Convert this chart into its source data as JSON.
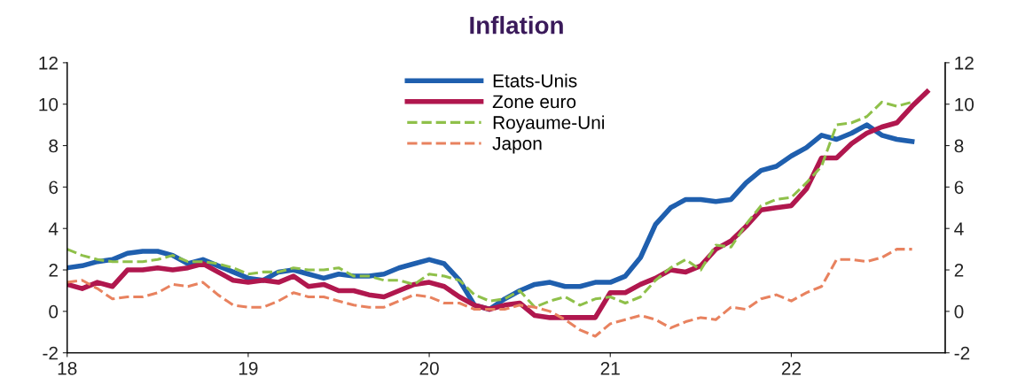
{
  "chart_data": {
    "type": "line",
    "title": "Inflation",
    "xlim": [
      18,
      22.85
    ],
    "xticks": [
      18,
      19,
      20,
      21,
      22
    ],
    "ylim": [
      -2,
      12
    ],
    "yticks": [
      -2,
      0,
      2,
      4,
      6,
      8,
      10,
      12
    ],
    "y2lim": [
      -2,
      12
    ],
    "y2ticks": [
      -2,
      0,
      2,
      4,
      6,
      8,
      10,
      12
    ],
    "grid": false,
    "legend": "top",
    "marker": "none",
    "series": [
      {
        "name": "Etats-Unis",
        "color": "#1f5fae",
        "line_style": "solid",
        "x": [
          18.0,
          18.083,
          18.167,
          18.25,
          18.333,
          18.417,
          18.5,
          18.583,
          18.667,
          18.75,
          18.833,
          18.917,
          19.0,
          19.083,
          19.167,
          19.25,
          19.333,
          19.417,
          19.5,
          19.583,
          19.667,
          19.75,
          19.833,
          19.917,
          20.0,
          20.083,
          20.167,
          20.25,
          20.333,
          20.417,
          20.5,
          20.583,
          20.667,
          20.75,
          20.833,
          20.917,
          21.0,
          21.083,
          21.167,
          21.25,
          21.333,
          21.417,
          21.5,
          21.583,
          21.667,
          21.75,
          21.833,
          21.917,
          22.0,
          22.083,
          22.167,
          22.25,
          22.333,
          22.417,
          22.5,
          22.583,
          22.667
        ],
        "values": [
          2.1,
          2.2,
          2.4,
          2.5,
          2.8,
          2.9,
          2.9,
          2.7,
          2.3,
          2.5,
          2.2,
          1.9,
          1.6,
          1.5,
          1.9,
          2.0,
          1.8,
          1.6,
          1.8,
          1.7,
          1.7,
          1.8,
          2.1,
          2.3,
          2.5,
          2.3,
          1.5,
          0.3,
          0.1,
          0.6,
          1.0,
          1.3,
          1.4,
          1.2,
          1.2,
          1.4,
          1.4,
          1.7,
          2.6,
          4.2,
          5.0,
          5.4,
          5.4,
          5.3,
          5.4,
          6.2,
          6.8,
          7.0,
          7.5,
          7.9,
          8.5,
          8.3,
          8.6,
          9.0,
          8.5,
          8.3,
          8.2
        ]
      },
      {
        "name": "Zone euro",
        "color": "#b0174e",
        "line_style": "solid",
        "values": [
          1.3,
          1.1,
          1.4,
          1.2,
          2.0,
          2.0,
          2.1,
          2.0,
          2.1,
          2.3,
          1.9,
          1.5,
          1.4,
          1.5,
          1.4,
          1.7,
          1.2,
          1.3,
          1.0,
          1.0,
          0.8,
          0.7,
          1.0,
          1.3,
          1.4,
          1.2,
          0.7,
          0.3,
          0.1,
          0.3,
          0.4,
          -0.2,
          -0.3,
          -0.3,
          -0.3,
          -0.3,
          0.9,
          0.9,
          1.3,
          1.6,
          2.0,
          1.9,
          2.2,
          3.0,
          3.4,
          4.1,
          4.9,
          5.0,
          5.1,
          5.9,
          7.4,
          7.4,
          8.1,
          8.6,
          8.9,
          9.1,
          9.9,
          10.6
        ]
      },
      {
        "name": "Royaume-Uni",
        "color": "#8fc04a",
        "line_style": "dashed",
        "x": [
          18.0,
          18.083,
          18.167,
          18.25,
          18.333,
          18.417,
          18.5,
          18.583,
          18.667,
          18.75,
          18.833,
          18.917,
          19.0,
          19.083,
          19.167,
          19.25,
          19.333,
          19.417,
          19.5,
          19.583,
          19.667,
          19.75,
          19.833,
          19.917,
          20.0,
          20.083,
          20.167,
          20.25,
          20.333,
          20.417,
          20.5,
          20.583,
          20.667,
          20.75,
          20.833,
          20.917,
          21.0,
          21.083,
          21.167,
          21.25,
          21.333,
          21.417,
          21.5,
          21.583,
          21.667,
          21.75,
          21.833,
          21.917,
          22.0,
          22.083,
          22.167,
          22.25,
          22.333,
          22.417,
          22.5,
          22.583,
          22.667
        ],
        "values": [
          3.0,
          2.7,
          2.5,
          2.4,
          2.4,
          2.4,
          2.5,
          2.7,
          2.4,
          2.4,
          2.3,
          2.1,
          1.8,
          1.9,
          1.9,
          2.1,
          2.0,
          2.0,
          2.1,
          1.7,
          1.7,
          1.5,
          1.5,
          1.3,
          1.8,
          1.7,
          1.5,
          0.8,
          0.5,
          0.6,
          1.0,
          0.2,
          0.5,
          0.7,
          0.3,
          0.6,
          0.7,
          0.4,
          0.7,
          1.5,
          2.1,
          2.5,
          2.0,
          3.2,
          3.1,
          4.2,
          5.1,
          5.4,
          5.5,
          6.2,
          7.0,
          9.0,
          9.1,
          9.4,
          10.1,
          9.9,
          10.1
        ]
      },
      {
        "name": "Japon",
        "color": "#e8825f",
        "line_style": "dashed",
        "x": [
          18.0,
          18.083,
          18.167,
          18.25,
          18.333,
          18.417,
          18.5,
          18.583,
          18.667,
          18.75,
          18.833,
          18.917,
          19.0,
          19.083,
          19.167,
          19.25,
          19.333,
          19.417,
          19.5,
          19.583,
          19.667,
          19.75,
          19.833,
          19.917,
          20.0,
          20.083,
          20.167,
          20.25,
          20.333,
          20.417,
          20.5,
          20.583,
          20.667,
          20.75,
          20.833,
          20.917,
          21.0,
          21.083,
          21.167,
          21.25,
          21.333,
          21.417,
          21.5,
          21.583,
          21.667,
          21.75,
          21.833,
          21.917,
          22.0,
          22.083,
          22.167,
          22.25,
          22.333,
          22.417,
          22.5,
          22.583,
          22.667
        ],
        "values": [
          1.4,
          1.5,
          1.1,
          0.6,
          0.7,
          0.7,
          0.9,
          1.3,
          1.2,
          1.4,
          0.8,
          0.3,
          0.2,
          0.2,
          0.5,
          0.9,
          0.7,
          0.7,
          0.5,
          0.3,
          0.2,
          0.2,
          0.5,
          0.8,
          0.7,
          0.4,
          0.4,
          0.1,
          0.1,
          0.1,
          0.3,
          0.2,
          0.0,
          -0.4,
          -0.9,
          -1.2,
          -0.6,
          -0.4,
          -0.2,
          -0.4,
          -0.8,
          -0.5,
          -0.3,
          -0.4,
          0.2,
          0.1,
          0.6,
          0.8,
          0.5,
          0.9,
          1.2,
          2.5,
          2.5,
          2.4,
          2.6,
          3.0,
          3.0
        ]
      }
    ],
    "x": [
      18.0,
      18.083,
      18.167,
      18.25,
      18.333,
      18.417,
      18.5,
      18.583,
      18.667,
      18.75,
      18.833,
      18.917,
      19.0,
      19.083,
      19.167,
      19.25,
      19.333,
      19.417,
      19.5,
      19.583,
      19.667,
      19.75,
      19.833,
      19.917,
      20.0,
      20.083,
      20.167,
      20.25,
      20.333,
      20.417,
      20.5,
      20.583,
      20.667,
      20.75,
      20.833,
      20.917,
      21.0,
      21.083,
      21.167,
      21.25,
      21.333,
      21.417,
      21.5,
      21.583,
      21.667,
      21.75,
      21.833,
      21.917,
      22.0,
      22.083,
      22.167,
      22.25,
      22.333,
      22.417,
      22.5,
      22.583,
      22.667,
      22.75
    ]
  }
}
